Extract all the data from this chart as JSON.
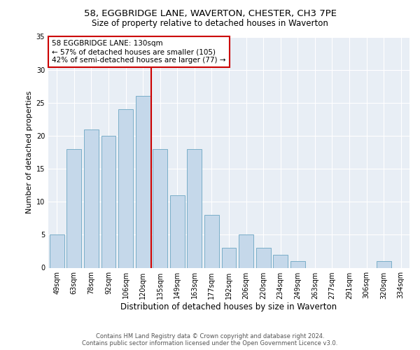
{
  "title1": "58, EGGBRIDGE LANE, WAVERTON, CHESTER, CH3 7PE",
  "title2": "Size of property relative to detached houses in Waverton",
  "xlabel": "Distribution of detached houses by size in Waverton",
  "ylabel": "Number of detached properties",
  "footer1": "Contains HM Land Registry data © Crown copyright and database right 2024.",
  "footer2": "Contains public sector information licensed under the Open Government Licence v3.0.",
  "annotation_line1": "58 EGGBRIDGE LANE: 130sqm",
  "annotation_line2": "← 57% of detached houses are smaller (105)",
  "annotation_line3": "42% of semi-detached houses are larger (77) →",
  "vline_x": 5,
  "bar_color": "#c5d8ea",
  "bar_edge_color": "#7aaec8",
  "vline_color": "#cc0000",
  "annotation_box_color": "#cc0000",
  "background_color": "#e8eef5",
  "categories": [
    "49sqm",
    "63sqm",
    "78sqm",
    "92sqm",
    "106sqm",
    "120sqm",
    "135sqm",
    "149sqm",
    "163sqm",
    "177sqm",
    "192sqm",
    "206sqm",
    "220sqm",
    "234sqm",
    "249sqm",
    "263sqm",
    "277sqm",
    "291sqm",
    "306sqm",
    "320sqm",
    "334sqm"
  ],
  "values": [
    5,
    18,
    21,
    20,
    24,
    26,
    18,
    11,
    18,
    8,
    3,
    5,
    3,
    2,
    1,
    0,
    0,
    0,
    0,
    1,
    0
  ],
  "ylim": [
    0,
    35
  ],
  "yticks": [
    0,
    5,
    10,
    15,
    20,
    25,
    30,
    35
  ],
  "title1_fontsize": 9.5,
  "title2_fontsize": 8.5,
  "ylabel_fontsize": 8,
  "xlabel_fontsize": 8.5,
  "tick_fontsize": 7,
  "footer_fontsize": 6,
  "annot_fontsize": 7.5
}
